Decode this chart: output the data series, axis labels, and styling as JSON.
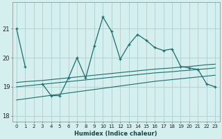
{
  "xlabel": "Humidex (Indice chaleur)",
  "background_color": "#d5eeee",
  "grid_color": "#b0d4d4",
  "line_color": "#1a6e6e",
  "x": [
    0,
    1,
    2,
    3,
    4,
    5,
    6,
    7,
    8,
    9,
    10,
    11,
    12,
    13,
    14,
    15,
    16,
    17,
    18,
    19,
    20,
    21,
    22,
    23
  ],
  "y_main": [
    21.0,
    19.7,
    null,
    19.1,
    18.7,
    18.7,
    19.3,
    20.0,
    19.3,
    20.4,
    21.4,
    20.9,
    19.95,
    20.45,
    20.8,
    20.6,
    20.35,
    20.25,
    20.3,
    19.7,
    19.65,
    19.6,
    19.1,
    19.0
  ],
  "y_line1": [
    19.15,
    19.18,
    19.2,
    19.22,
    19.25,
    19.28,
    19.31,
    19.34,
    19.37,
    19.4,
    19.43,
    19.46,
    19.49,
    19.52,
    19.55,
    19.58,
    19.61,
    19.63,
    19.65,
    19.68,
    19.7,
    19.73,
    19.76,
    19.78
  ],
  "y_line2": [
    19.0,
    19.03,
    19.06,
    19.09,
    19.12,
    19.15,
    19.18,
    19.21,
    19.24,
    19.27,
    19.3,
    19.33,
    19.36,
    19.39,
    19.42,
    19.45,
    19.48,
    19.5,
    19.52,
    19.55,
    19.57,
    19.6,
    19.62,
    19.65
  ],
  "y_line3": [
    18.55,
    18.59,
    18.63,
    18.67,
    18.71,
    18.75,
    18.79,
    18.83,
    18.87,
    18.91,
    18.95,
    18.99,
    19.03,
    19.07,
    19.11,
    19.15,
    19.19,
    19.22,
    19.25,
    19.28,
    19.31,
    19.34,
    19.37,
    19.4
  ],
  "ylim": [
    17.8,
    21.9
  ],
  "yticks": [
    18,
    19,
    20,
    21
  ],
  "xticks": [
    0,
    1,
    2,
    3,
    4,
    5,
    6,
    7,
    8,
    9,
    10,
    11,
    12,
    13,
    14,
    15,
    16,
    17,
    18,
    19,
    20,
    21,
    22,
    23
  ]
}
